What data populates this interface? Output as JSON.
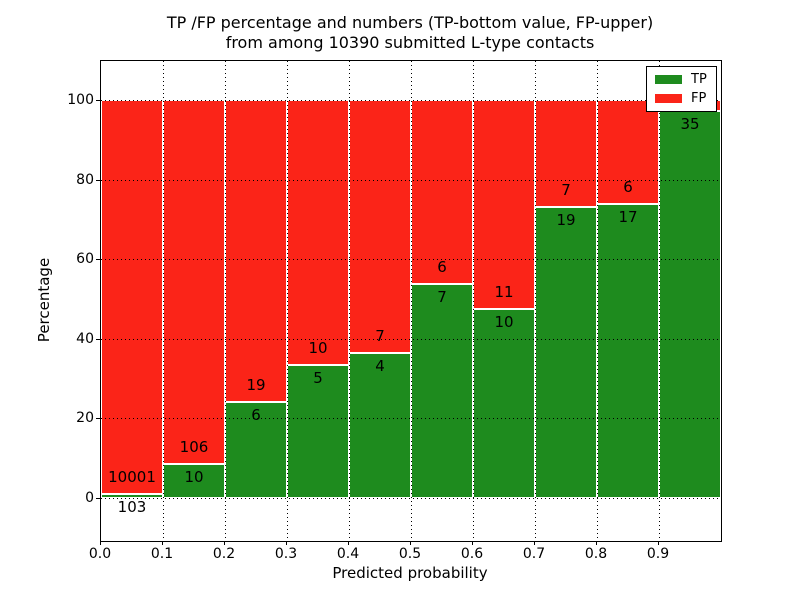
{
  "chart_data": {
    "type": "bar",
    "stacked": true,
    "title_line1": "TP /FP percentage and numbers (TP-bottom value, FP-upper)",
    "title_line2": "from among 10390 submitted L-type contacts",
    "xlabel": "Predicted probability",
    "ylabel": "Percentage",
    "x_ticks": [
      "0.0",
      "0.1",
      "0.2",
      "0.3",
      "0.4",
      "0.5",
      "0.6",
      "0.7",
      "0.8",
      "0.9"
    ],
    "y_ticks": [
      0,
      20,
      40,
      60,
      80,
      100
    ],
    "x_range": [
      0.0,
      1.0
    ],
    "bin_width": 0.1,
    "ylim_display": [
      -10.5,
      110.5
    ],
    "grid": "dotted",
    "colors": {
      "tp": "#1e8b1e",
      "fp": "#fb2418",
      "bar_edge": "#ffffff"
    },
    "legend": {
      "position": "upper right",
      "entries": [
        {
          "label": "TP",
          "color": "#1e8b1e"
        },
        {
          "label": "FP",
          "color": "#fb2418"
        }
      ]
    },
    "series": [
      {
        "name": "TP",
        "counts": [
          103,
          10,
          6,
          5,
          4,
          7,
          10,
          19,
          17,
          35
        ]
      },
      {
        "name": "FP",
        "counts": [
          10001,
          106,
          19,
          10,
          7,
          6,
          11,
          7,
          6,
          null
        ]
      }
    ],
    "tp_percent_heights": [
      1.0,
      8.6,
      24.0,
      33.3,
      36.4,
      53.8,
      47.6,
      73.1,
      73.9,
      97.2
    ],
    "bin_starts": [
      0.0,
      0.1,
      0.2,
      0.3,
      0.4,
      0.5,
      0.6,
      0.7,
      0.8,
      0.9
    ]
  }
}
